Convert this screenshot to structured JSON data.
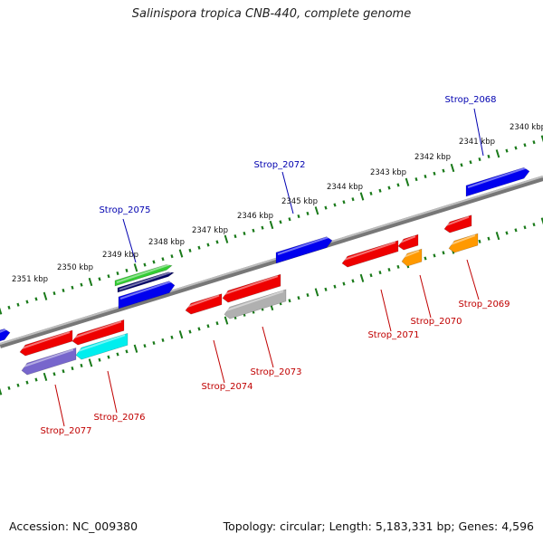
{
  "title": "Salinispora tropica CNB-440, complete genome",
  "footer": {
    "accession": "Accession: NC_009380",
    "stats": "Topology: circular; Length: 5,183,331 bp; Genes: 4,596"
  },
  "colors": {
    "backbone": "#808080",
    "tick": "#1a7a1a",
    "forward_label": "#0000b0",
    "reverse_label": "#c00000",
    "red": "#ee0000",
    "blue": "#0000ee",
    "green": "#33cc33",
    "navy": "#000066",
    "cyan": "#00eeee",
    "purple": "#7766cc",
    "gray": "#b0b0b0",
    "orange": "#ff9900"
  },
  "scale_labels": [
    "2340 kbp",
    "2341 kbp",
    "2342 kbp",
    "2343 kbp",
    "2344 kbp",
    "2345 kbp",
    "2346 kbp",
    "2347 kbp",
    "2348 kbp",
    "2349 kbp",
    "2350 kbp",
    "2351 kbp"
  ],
  "gene_labels": [
    {
      "text": "Strop_2068",
      "strand": "forward"
    },
    {
      "text": "Strop_2072",
      "strand": "forward"
    },
    {
      "text": "Strop_2075",
      "strand": "forward"
    },
    {
      "text": "Strop_2069",
      "strand": "reverse"
    },
    {
      "text": "Strop_2070",
      "strand": "reverse"
    },
    {
      "text": "Strop_2071",
      "strand": "reverse"
    },
    {
      "text": "Strop_2073",
      "strand": "reverse"
    },
    {
      "text": "Strop_2074",
      "strand": "reverse"
    },
    {
      "text": "Strop_2076",
      "strand": "reverse"
    },
    {
      "text": "Strop_2077",
      "strand": "reverse"
    }
  ],
  "features": [
    {
      "color": "blue",
      "dir": "right"
    },
    {
      "color": "blue",
      "dir": "right"
    },
    {
      "color": "green",
      "dir": "right"
    },
    {
      "color": "navy",
      "dir": "right"
    },
    {
      "color": "blue",
      "dir": "right"
    },
    {
      "color": "blue",
      "dir": "right"
    },
    {
      "color": "red",
      "dir": "left"
    },
    {
      "color": "orange",
      "dir": "left"
    },
    {
      "color": "red",
      "dir": "left"
    },
    {
      "color": "orange",
      "dir": "left"
    },
    {
      "color": "red",
      "dir": "left"
    },
    {
      "color": "red",
      "dir": "left"
    },
    {
      "color": "gray",
      "dir": "left"
    },
    {
      "color": "red",
      "dir": "left"
    },
    {
      "color": "red",
      "dir": "left"
    },
    {
      "color": "cyan",
      "dir": "left"
    },
    {
      "color": "red",
      "dir": "left"
    },
    {
      "color": "purple",
      "dir": "left"
    }
  ]
}
